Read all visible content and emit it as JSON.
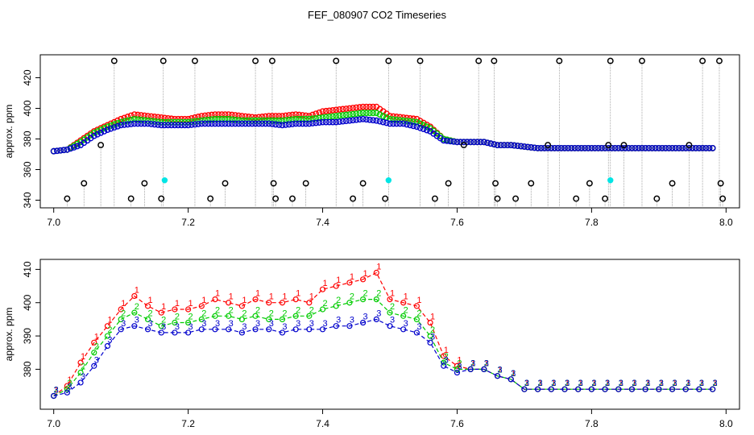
{
  "figure_title": "FEF_080907  CO2 Timeseries",
  "colors": {
    "series1": "#ff0000",
    "series2": "#00cc00",
    "series3": "#0000cc",
    "outlier": "#000000",
    "flag": "#00e5e5",
    "dropline": "#888888"
  },
  "chart_data": [
    {
      "type": "scatter",
      "title": "",
      "xlabel": "",
      "ylabel": "approx. ppm",
      "xlim": [
        6.98,
        8.02
      ],
      "ylim": [
        335,
        435
      ],
      "x_ticks": [
        "7.0",
        "7.2",
        "7.4",
        "7.6",
        "7.8",
        "8.0"
      ],
      "y_ticks": [
        "340",
        "360",
        "380",
        "400",
        "420"
      ],
      "y_tick_values": [
        340,
        360,
        380,
        400,
        420
      ],
      "x_tick_values": [
        7.0,
        7.2,
        7.4,
        7.6,
        7.8,
        8.0
      ],
      "baseline": 335,
      "series": [
        {
          "name": "1",
          "x": [
            7.0,
            7.02,
            7.04,
            7.06,
            7.08,
            7.1,
            7.12,
            7.14,
            7.16,
            7.18,
            7.2,
            7.22,
            7.24,
            7.26,
            7.28,
            7.3,
            7.32,
            7.34,
            7.36,
            7.38,
            7.4,
            7.42,
            7.44,
            7.46,
            7.48,
            7.5,
            7.52,
            7.54,
            7.56,
            7.58,
            7.6,
            7.62,
            7.64,
            7.66,
            7.68,
            7.7,
            7.72,
            7.74,
            7.76,
            7.78,
            7.8,
            7.82,
            7.84,
            7.86,
            7.88,
            7.9,
            7.92,
            7.94,
            7.96,
            7.98
          ],
          "y": [
            372,
            373,
            379,
            385,
            389,
            393,
            396,
            395,
            394,
            393,
            393,
            395,
            396,
            396,
            395,
            394,
            395,
            395,
            396,
            395,
            398,
            399,
            400,
            401,
            401,
            395,
            394,
            393,
            388,
            380,
            378,
            378,
            378,
            376,
            376,
            375,
            374,
            374,
            374,
            374,
            374,
            374,
            374,
            374,
            374,
            374,
            374,
            374,
            374,
            374
          ]
        },
        {
          "name": "2",
          "x": [
            7.0,
            7.02,
            7.04,
            7.06,
            7.08,
            7.1,
            7.12,
            7.14,
            7.16,
            7.18,
            7.2,
            7.22,
            7.24,
            7.26,
            7.28,
            7.3,
            7.32,
            7.34,
            7.36,
            7.38,
            7.4,
            7.42,
            7.44,
            7.46,
            7.48,
            7.5,
            7.52,
            7.54,
            7.56,
            7.58,
            7.6,
            7.62,
            7.64,
            7.66,
            7.68,
            7.7,
            7.72,
            7.74,
            7.76,
            7.78,
            7.8,
            7.82,
            7.84,
            7.86,
            7.88,
            7.9,
            7.92,
            7.94,
            7.96,
            7.98
          ],
          "y": [
            372,
            373,
            378,
            384,
            388,
            391,
            393,
            392,
            391,
            391,
            391,
            392,
            393,
            393,
            392,
            392,
            392,
            392,
            393,
            393,
            394,
            395,
            396,
            397,
            397,
            393,
            392,
            391,
            387,
            380,
            378,
            378,
            378,
            376,
            376,
            375,
            374,
            374,
            374,
            374,
            374,
            374,
            374,
            374,
            374,
            374,
            374,
            374,
            374,
            374
          ]
        },
        {
          "name": "3",
          "x": [
            7.0,
            7.02,
            7.04,
            7.06,
            7.08,
            7.1,
            7.12,
            7.14,
            7.16,
            7.18,
            7.2,
            7.22,
            7.24,
            7.26,
            7.28,
            7.3,
            7.32,
            7.34,
            7.36,
            7.38,
            7.4,
            7.42,
            7.44,
            7.46,
            7.48,
            7.5,
            7.52,
            7.54,
            7.56,
            7.58,
            7.6,
            7.62,
            7.64,
            7.66,
            7.68,
            7.7,
            7.72,
            7.74,
            7.76,
            7.78,
            7.8,
            7.82,
            7.84,
            7.86,
            7.88,
            7.9,
            7.92,
            7.94,
            7.96,
            7.98
          ],
          "y": [
            372,
            373,
            376,
            382,
            386,
            389,
            390,
            390,
            389,
            389,
            389,
            390,
            390,
            390,
            390,
            390,
            390,
            389,
            390,
            390,
            391,
            391,
            392,
            393,
            392,
            390,
            390,
            388,
            385,
            379,
            378,
            378,
            378,
            376,
            376,
            375,
            374,
            374,
            374,
            374,
            374,
            374,
            374,
            374,
            374,
            374,
            374,
            374,
            374,
            374
          ]
        }
      ],
      "outliers": {
        "x": [
          7.02,
          7.045,
          7.07,
          7.09,
          7.115,
          7.135,
          7.16,
          7.163,
          7.21,
          7.233,
          7.255,
          7.3,
          7.325,
          7.327,
          7.33,
          7.355,
          7.375,
          7.42,
          7.445,
          7.46,
          7.493,
          7.498,
          7.545,
          7.567,
          7.587,
          7.61,
          7.632,
          7.655,
          7.657,
          7.66,
          7.687,
          7.71,
          7.735,
          7.752,
          7.777,
          7.797,
          7.82,
          7.825,
          7.828,
          7.848,
          7.875,
          7.897,
          7.92,
          7.945,
          7.965,
          7.99,
          7.992,
          7.995
        ],
        "y": [
          341,
          351,
          376,
          431,
          341,
          351,
          341,
          431,
          431,
          341,
          351,
          431,
          431,
          351,
          341,
          341,
          351,
          431,
          341,
          351,
          341,
          431,
          431,
          341,
          351,
          376,
          431,
          431,
          351,
          341,
          341,
          351,
          376,
          431,
          341,
          351,
          341,
          376,
          431,
          376,
          431,
          341,
          351,
          376,
          431,
          431,
          351,
          341
        ]
      },
      "flags": {
        "x": [
          7.165,
          7.498,
          7.828
        ],
        "y": [
          353,
          353,
          353
        ]
      }
    },
    {
      "type": "line",
      "title": "",
      "xlabel": "",
      "ylabel": "approx. ppm",
      "xlim": [
        6.98,
        8.02
      ],
      "ylim": [
        368,
        413
      ],
      "x_ticks": [
        "7.0",
        "7.2",
        "7.4",
        "7.6",
        "7.8",
        "8.0"
      ],
      "y_ticks": [
        "380",
        "390",
        "400",
        "410"
      ],
      "y_tick_values": [
        380,
        390,
        400,
        410
      ],
      "x_tick_values": [
        7.0,
        7.2,
        7.4,
        7.6,
        7.8,
        8.0
      ],
      "series": [
        {
          "name": "1",
          "x": [
            7.0,
            7.02,
            7.04,
            7.06,
            7.08,
            7.1,
            7.12,
            7.14,
            7.16,
            7.18,
            7.2,
            7.22,
            7.24,
            7.26,
            7.28,
            7.3,
            7.32,
            7.34,
            7.36,
            7.38,
            7.4,
            7.42,
            7.44,
            7.46,
            7.48,
            7.5,
            7.52,
            7.54,
            7.56,
            7.58,
            7.6,
            7.62,
            7.64,
            7.66,
            7.68,
            7.7,
            7.72,
            7.74,
            7.76,
            7.78,
            7.8,
            7.82,
            7.84,
            7.86,
            7.88,
            7.9,
            7.92,
            7.94,
            7.96,
            7.98
          ],
          "y": [
            372,
            375,
            382,
            388,
            393,
            398,
            402,
            399,
            397,
            398,
            398,
            399,
            401,
            400,
            399,
            401,
            400,
            400,
            401,
            400,
            404,
            405,
            406,
            407,
            409,
            401,
            400,
            399,
            394,
            384,
            381,
            380,
            380,
            378,
            377,
            374,
            374,
            374,
            374,
            374,
            374,
            374,
            374,
            374,
            374,
            374,
            374,
            374,
            374,
            374
          ]
        },
        {
          "name": "2",
          "x": [
            7.0,
            7.02,
            7.04,
            7.06,
            7.08,
            7.1,
            7.12,
            7.14,
            7.16,
            7.18,
            7.2,
            7.22,
            7.24,
            7.26,
            7.28,
            7.3,
            7.32,
            7.34,
            7.36,
            7.38,
            7.4,
            7.42,
            7.44,
            7.46,
            7.48,
            7.5,
            7.52,
            7.54,
            7.56,
            7.58,
            7.6,
            7.62,
            7.64,
            7.66,
            7.68,
            7.7,
            7.72,
            7.74,
            7.76,
            7.78,
            7.8,
            7.82,
            7.84,
            7.86,
            7.88,
            7.9,
            7.92,
            7.94,
            7.96,
            7.98
          ],
          "y": [
            372,
            374,
            379,
            385,
            390,
            395,
            397,
            395,
            393,
            394,
            394,
            395,
            396,
            396,
            395,
            396,
            395,
            395,
            396,
            396,
            398,
            399,
            400,
            401,
            401,
            397,
            396,
            395,
            390,
            382,
            380,
            380,
            380,
            378,
            377,
            374,
            374,
            374,
            374,
            374,
            374,
            374,
            374,
            374,
            374,
            374,
            374,
            374,
            374,
            374
          ]
        },
        {
          "name": "3",
          "x": [
            7.0,
            7.02,
            7.04,
            7.06,
            7.08,
            7.1,
            7.12,
            7.14,
            7.16,
            7.18,
            7.2,
            7.22,
            7.24,
            7.26,
            7.28,
            7.3,
            7.32,
            7.34,
            7.36,
            7.38,
            7.4,
            7.42,
            7.44,
            7.46,
            7.48,
            7.5,
            7.52,
            7.54,
            7.56,
            7.58,
            7.6,
            7.62,
            7.64,
            7.66,
            7.68,
            7.7,
            7.72,
            7.74,
            7.76,
            7.78,
            7.8,
            7.82,
            7.84,
            7.86,
            7.88,
            7.9,
            7.92,
            7.94,
            7.96,
            7.98
          ],
          "y": [
            372,
            373,
            376,
            381,
            387,
            392,
            393,
            392,
            391,
            391,
            391,
            392,
            392,
            392,
            391,
            392,
            392,
            391,
            392,
            392,
            392,
            393,
            393,
            394,
            395,
            393,
            392,
            391,
            388,
            381,
            379,
            380,
            380,
            378,
            377,
            374,
            374,
            374,
            374,
            374,
            374,
            374,
            374,
            374,
            374,
            374,
            374,
            374,
            374,
            374
          ]
        }
      ]
    }
  ]
}
